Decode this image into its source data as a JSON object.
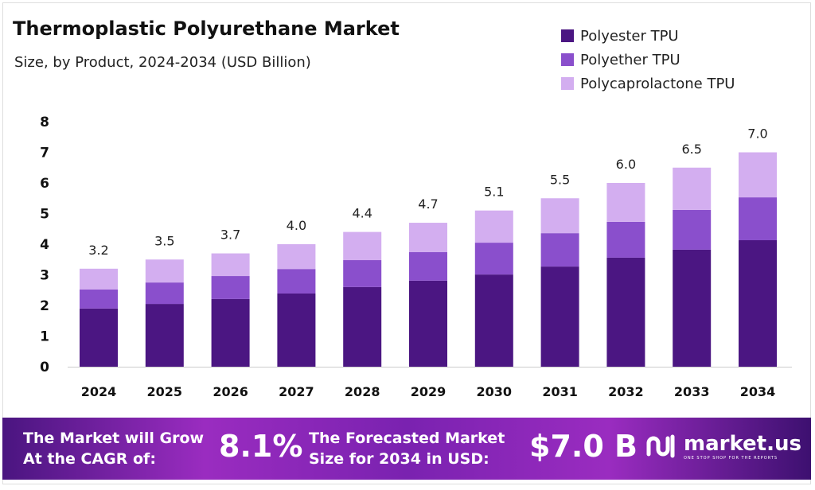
{
  "chart_data": {
    "type": "bar",
    "stacked": true,
    "title": "Thermoplastic Polyurethane Market",
    "subtitle": "Size, by Product, 2024-2034 (USD Billion)",
    "categories": [
      "2024",
      "2025",
      "2026",
      "2027",
      "2028",
      "2029",
      "2030",
      "2031",
      "2032",
      "2033",
      "2034"
    ],
    "series": [
      {
        "name": "Polyester TPU",
        "color": "#4b1682",
        "values": [
          1.9,
          2.05,
          2.21,
          2.39,
          2.6,
          2.81,
          3.01,
          3.27,
          3.56,
          3.82,
          4.13
        ]
      },
      {
        "name": "Polyether TPU",
        "color": "#8a4fcc",
        "values": [
          0.62,
          0.7,
          0.75,
          0.8,
          0.88,
          0.93,
          1.04,
          1.09,
          1.17,
          1.3,
          1.4
        ]
      },
      {
        "name": "Polycaprolactone TPU",
        "color": "#d3aef0",
        "values": [
          0.68,
          0.75,
          0.74,
          0.81,
          0.92,
          0.96,
          1.05,
          1.14,
          1.27,
          1.38,
          1.47
        ]
      }
    ],
    "totals": [
      "3.2",
      "3.5",
      "3.7",
      "4.0",
      "4.4",
      "4.7",
      "5.1",
      "5.5",
      "6.0",
      "6.5",
      "7.0"
    ],
    "yticks": [
      "0",
      "1",
      "2",
      "3",
      "4",
      "5",
      "6",
      "7",
      "8"
    ],
    "ylim": [
      0,
      8
    ],
    "grid": false,
    "legend": "top-right"
  },
  "footer": {
    "cagr_label_1": "The Market will Grow",
    "cagr_label_2": "At the CAGR of:",
    "cagr_value": "8.1%",
    "forecast_label_1": "The Forecasted Market",
    "forecast_label_2": "Size for 2034 in USD:",
    "forecast_value": "$7.0 B",
    "logo_name": "market.us",
    "logo_tagline": "ONE STOP SHOP FOR THE REPORTS"
  }
}
